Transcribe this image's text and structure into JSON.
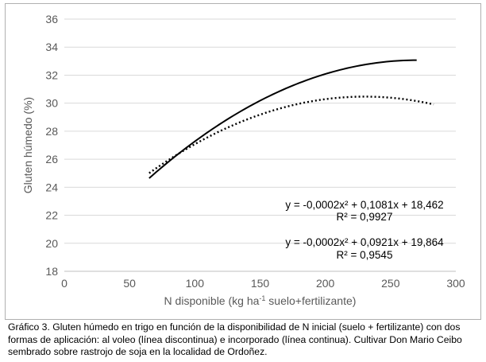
{
  "chart_data": {
    "type": "line",
    "title": "",
    "xlabel": "N disponible (kg ha-1 suelo+fertilizante)",
    "xlabel_parts": {
      "pre": "N disponible (kg ha",
      "sup": "-1",
      "post": " suelo+fertilizante)"
    },
    "ylabel": "Gluten húmedo (%)",
    "xlim": [
      0,
      300
    ],
    "ylim": [
      18,
      36
    ],
    "x_ticks": [
      0,
      50,
      100,
      150,
      200,
      250,
      300
    ],
    "y_ticks": [
      18,
      20,
      22,
      24,
      26,
      28,
      30,
      32,
      34,
      36
    ],
    "grid": "horizontal",
    "series": [
      {
        "style": "solid",
        "color": "#000000",
        "coefficients": [
          -0.0002,
          0.1081,
          18.462
        ],
        "x_range": [
          65,
          270
        ],
        "equation": "y = -0,0002x² + 0,1081x + 18,462",
        "r2": "R² = 0,9927"
      },
      {
        "style": "dotted",
        "color": "#000000",
        "coefficients": [
          -0.0002,
          0.0921,
          19.864
        ],
        "x_range": [
          65,
          283
        ],
        "equation": "y = -0,0002x² + 0,0921x + 19,864",
        "r2": "R² = 0,9545"
      }
    ]
  },
  "caption": "Gráfico 3. Gluten húmedo en trigo en función de la disponibilidad de N inicial (suelo + fertilizante) con dos formas de aplicación: al voleo (línea discontinua) e incorporado (línea continua). Cultivar Don Mario Ceibo sembrado sobre rastrojo de soja en la localidad de Ordoñez."
}
